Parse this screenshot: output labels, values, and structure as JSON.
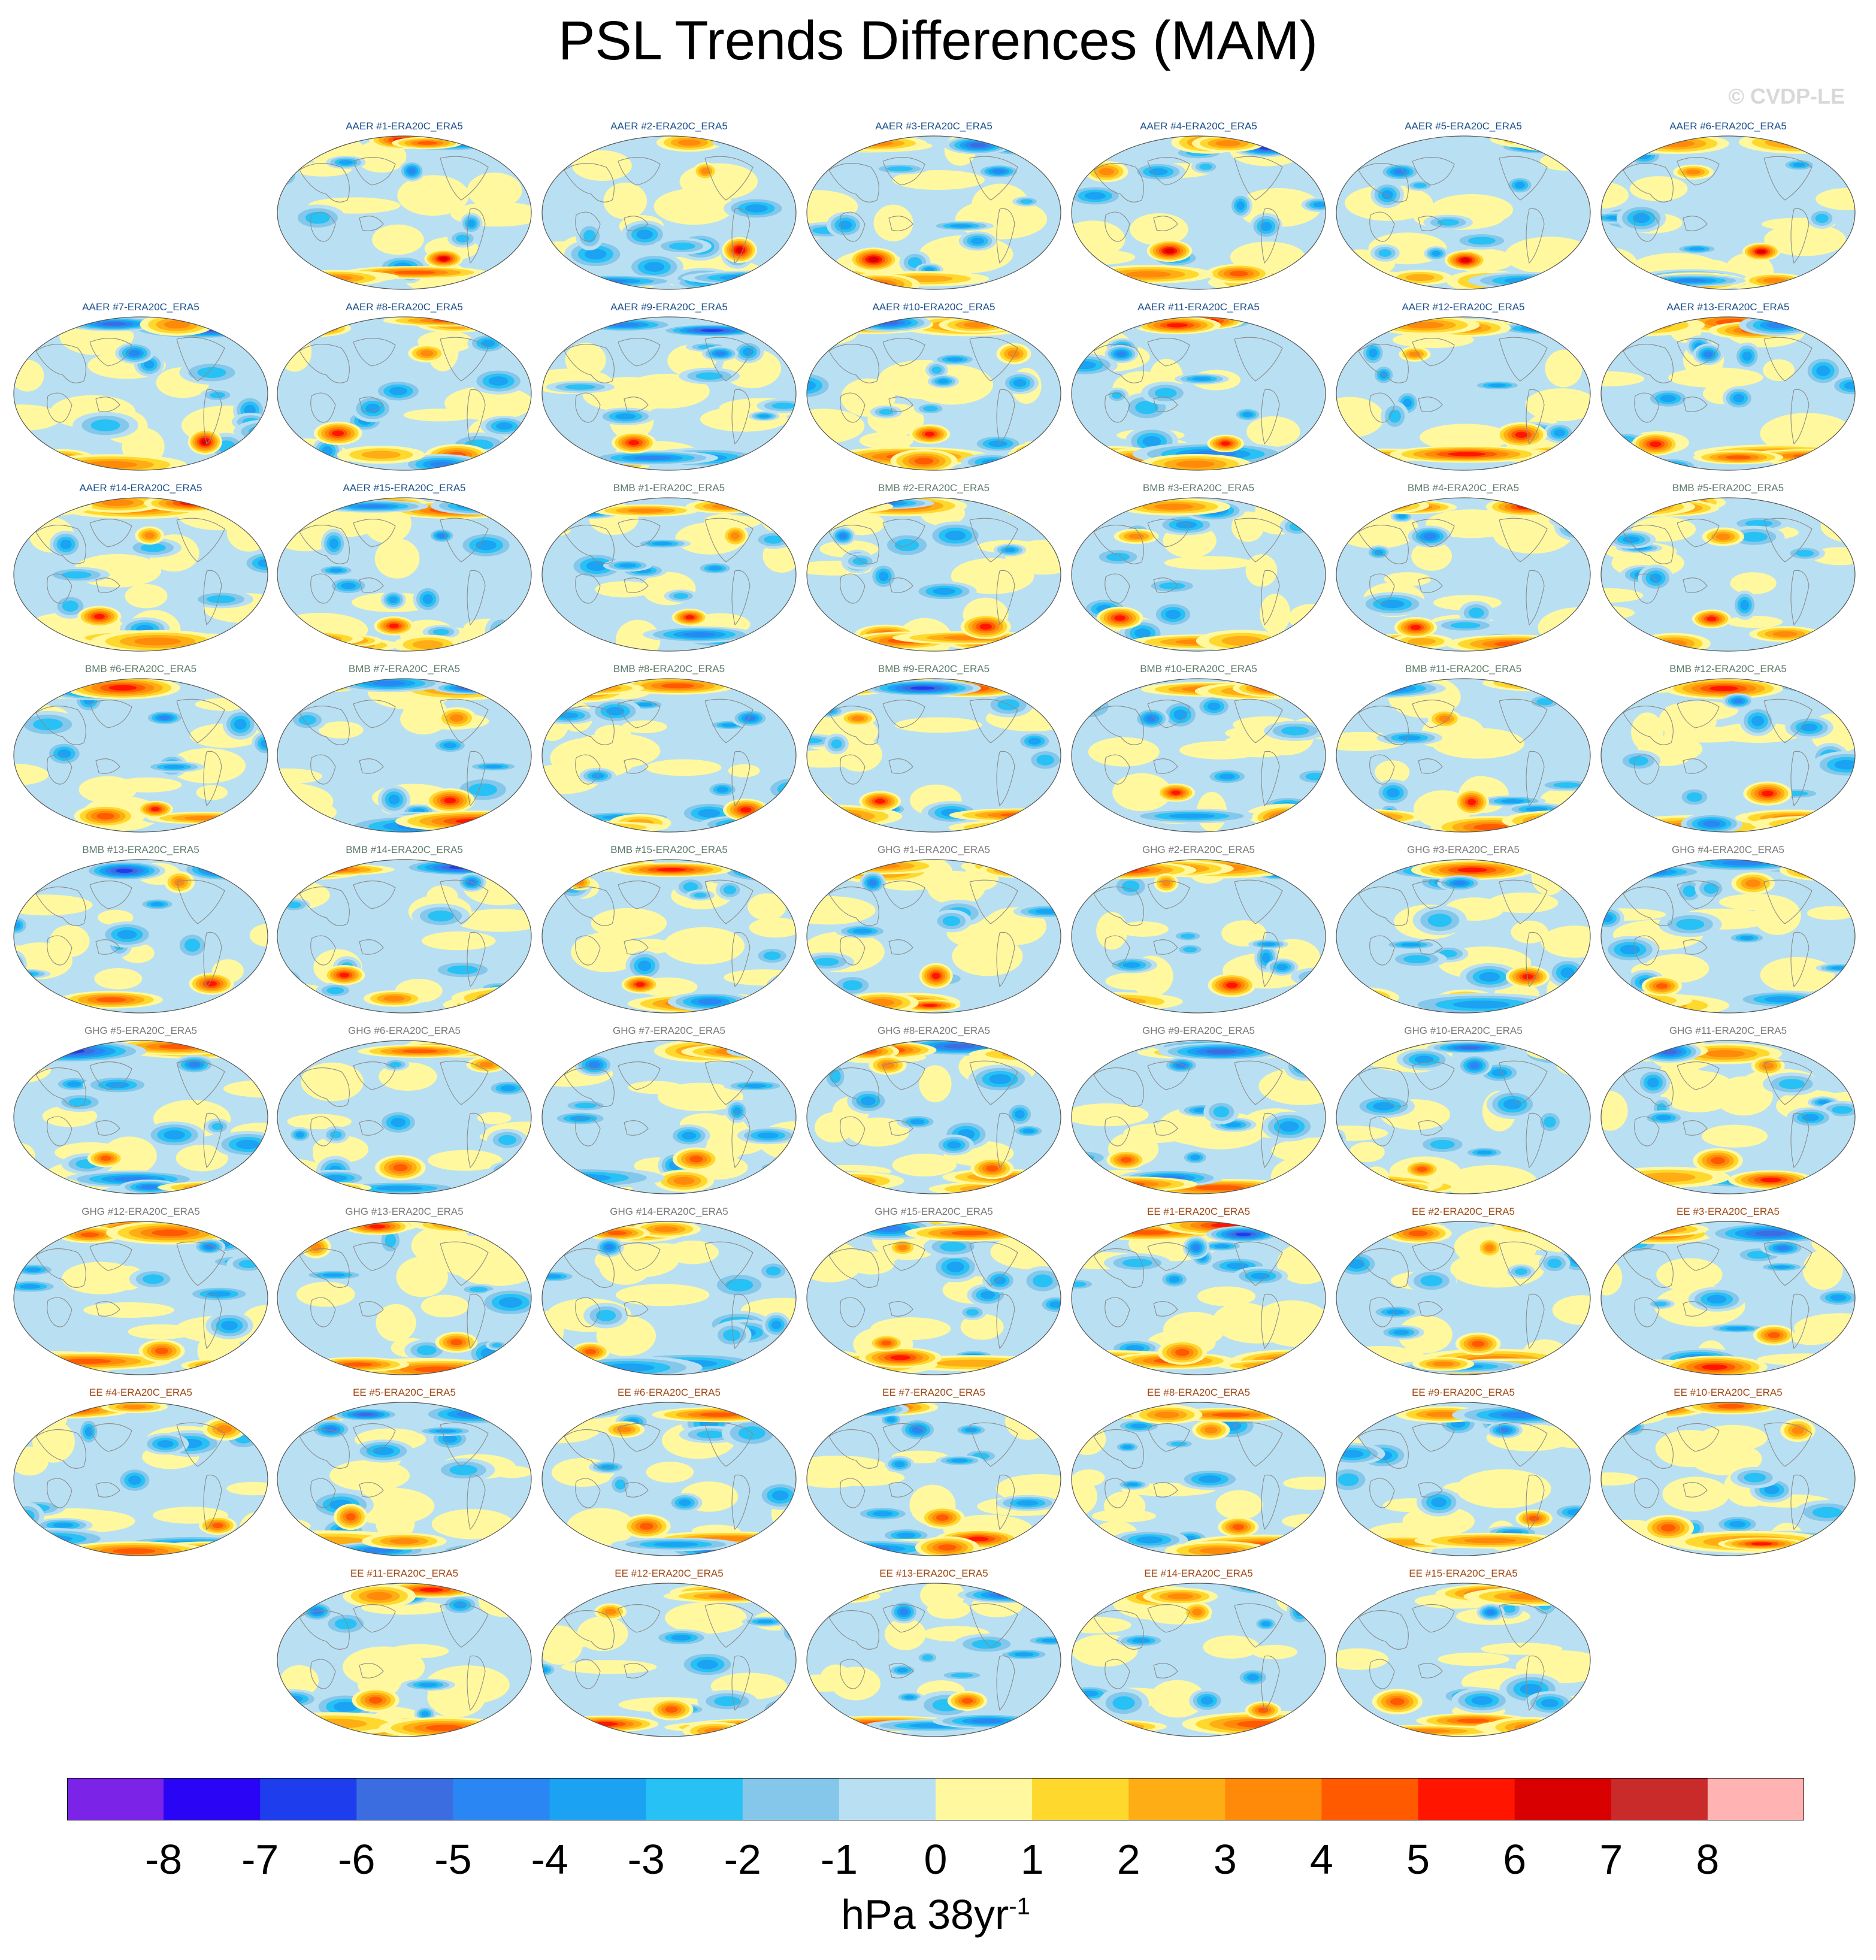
{
  "title": "PSL Trends Differences (MAM)",
  "watermark": "© CVDP-LE",
  "chart_data": {
    "type": "heatmap",
    "title": "PSL Trends Differences (MAM)",
    "projection": "Robinson (global)",
    "colorbar": {
      "label": "hPa 38yr",
      "label_exponent": "-1",
      "ticks": [
        "-8",
        "-7",
        "-6",
        "-5",
        "-4",
        "-3",
        "-2",
        "-1",
        "0",
        "1",
        "2",
        "3",
        "4",
        "5",
        "6",
        "7",
        "8"
      ],
      "levels": [
        -8,
        -7,
        -6,
        -5,
        -4,
        -3,
        -2,
        -1,
        0,
        1,
        2,
        3,
        4,
        5,
        6,
        7,
        8
      ],
      "colors": [
        "#7b24e8",
        "#2a05f5",
        "#1e3ded",
        "#3b6de0",
        "#2a86f2",
        "#1ba2f2",
        "#27c1f5",
        "#85c7ea",
        "#b9e0f2",
        "#fff89e",
        "#ffd82d",
        "#ffad14",
        "#ff8a0a",
        "#ff5a00",
        "#ff1500",
        "#d80000",
        "#c92a2a",
        "#ffb3b3"
      ]
    },
    "groups": [
      {
        "name": "AAER",
        "color": "#1a4f8a"
      },
      {
        "name": "BMB",
        "color": "#5e7a6a"
      },
      {
        "name": "GHG",
        "color": "#7a7a7a"
      },
      {
        "name": "EE",
        "color": "#a04a16"
      }
    ],
    "panels": [
      {
        "label": "AAER #1-ERA20C_ERA5",
        "group": "AAER"
      },
      {
        "label": "AAER #2-ERA20C_ERA5",
        "group": "AAER"
      },
      {
        "label": "AAER #3-ERA20C_ERA5",
        "group": "AAER"
      },
      {
        "label": "AAER #4-ERA20C_ERA5",
        "group": "AAER"
      },
      {
        "label": "AAER #5-ERA20C_ERA5",
        "group": "AAER"
      },
      {
        "label": "AAER #6-ERA20C_ERA5",
        "group": "AAER"
      },
      {
        "label": "AAER #7-ERA20C_ERA5",
        "group": "AAER"
      },
      {
        "label": "AAER #8-ERA20C_ERA5",
        "group": "AAER"
      },
      {
        "label": "AAER #9-ERA20C_ERA5",
        "group": "AAER"
      },
      {
        "label": "AAER #10-ERA20C_ERA5",
        "group": "AAER"
      },
      {
        "label": "AAER #11-ERA20C_ERA5",
        "group": "AAER"
      },
      {
        "label": "AAER #12-ERA20C_ERA5",
        "group": "AAER"
      },
      {
        "label": "AAER #13-ERA20C_ERA5",
        "group": "AAER"
      },
      {
        "label": "AAER #14-ERA20C_ERA5",
        "group": "AAER"
      },
      {
        "label": "AAER #15-ERA20C_ERA5",
        "group": "AAER"
      },
      {
        "label": "BMB #1-ERA20C_ERA5",
        "group": "BMB"
      },
      {
        "label": "BMB #2-ERA20C_ERA5",
        "group": "BMB"
      },
      {
        "label": "BMB #3-ERA20C_ERA5",
        "group": "BMB"
      },
      {
        "label": "BMB #4-ERA20C_ERA5",
        "group": "BMB"
      },
      {
        "label": "BMB #5-ERA20C_ERA5",
        "group": "BMB"
      },
      {
        "label": "BMB #6-ERA20C_ERA5",
        "group": "BMB"
      },
      {
        "label": "BMB #7-ERA20C_ERA5",
        "group": "BMB"
      },
      {
        "label": "BMB #8-ERA20C_ERA5",
        "group": "BMB"
      },
      {
        "label": "BMB #9-ERA20C_ERA5",
        "group": "BMB"
      },
      {
        "label": "BMB #10-ERA20C_ERA5",
        "group": "BMB"
      },
      {
        "label": "BMB #11-ERA20C_ERA5",
        "group": "BMB"
      },
      {
        "label": "BMB #12-ERA20C_ERA5",
        "group": "BMB"
      },
      {
        "label": "BMB #13-ERA20C_ERA5",
        "group": "BMB"
      },
      {
        "label": "BMB #14-ERA20C_ERA5",
        "group": "BMB"
      },
      {
        "label": "BMB #15-ERA20C_ERA5",
        "group": "BMB"
      },
      {
        "label": "GHG #1-ERA20C_ERA5",
        "group": "GHG"
      },
      {
        "label": "GHG #2-ERA20C_ERA5",
        "group": "GHG"
      },
      {
        "label": "GHG #3-ERA20C_ERA5",
        "group": "GHG"
      },
      {
        "label": "GHG #4-ERA20C_ERA5",
        "group": "GHG"
      },
      {
        "label": "GHG #5-ERA20C_ERA5",
        "group": "GHG"
      },
      {
        "label": "GHG #6-ERA20C_ERA5",
        "group": "GHG"
      },
      {
        "label": "GHG #7-ERA20C_ERA5",
        "group": "GHG"
      },
      {
        "label": "GHG #8-ERA20C_ERA5",
        "group": "GHG"
      },
      {
        "label": "GHG #9-ERA20C_ERA5",
        "group": "GHG"
      },
      {
        "label": "GHG #10-ERA20C_ERA5",
        "group": "GHG"
      },
      {
        "label": "GHG #11-ERA20C_ERA5",
        "group": "GHG"
      },
      {
        "label": "GHG #12-ERA20C_ERA5",
        "group": "GHG"
      },
      {
        "label": "GHG #13-ERA20C_ERA5",
        "group": "GHG"
      },
      {
        "label": "GHG #14-ERA20C_ERA5",
        "group": "GHG"
      },
      {
        "label": "GHG #15-ERA20C_ERA5",
        "group": "GHG"
      },
      {
        "label": "EE #1-ERA20C_ERA5",
        "group": "EE"
      },
      {
        "label": "EE #2-ERA20C_ERA5",
        "group": "EE"
      },
      {
        "label": "EE #3-ERA20C_ERA5",
        "group": "EE"
      },
      {
        "label": "EE #4-ERA20C_ERA5",
        "group": "EE"
      },
      {
        "label": "EE #5-ERA20C_ERA5",
        "group": "EE"
      },
      {
        "label": "EE #6-ERA20C_ERA5",
        "group": "EE"
      },
      {
        "label": "EE #7-ERA20C_ERA5",
        "group": "EE"
      },
      {
        "label": "EE #8-ERA20C_ERA5",
        "group": "EE"
      },
      {
        "label": "EE #9-ERA20C_ERA5",
        "group": "EE"
      },
      {
        "label": "EE #10-ERA20C_ERA5",
        "group": "EE"
      },
      {
        "label": "EE #11-ERA20C_ERA5",
        "group": "EE"
      },
      {
        "label": "EE #12-ERA20C_ERA5",
        "group": "EE"
      },
      {
        "label": "EE #13-ERA20C_ERA5",
        "group": "EE"
      },
      {
        "label": "EE #14-ERA20C_ERA5",
        "group": "EE"
      },
      {
        "label": "EE #15-ERA20C_ERA5",
        "group": "EE"
      }
    ]
  }
}
